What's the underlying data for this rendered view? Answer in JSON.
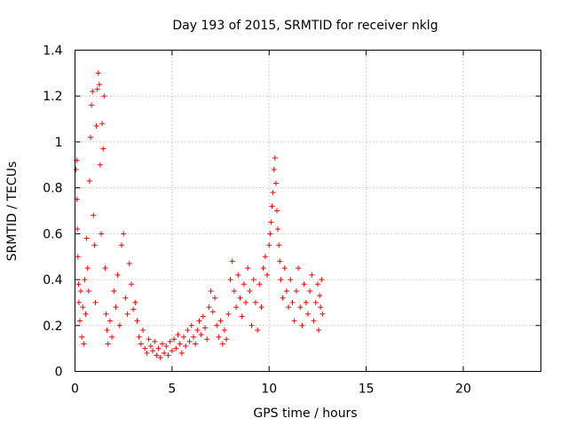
{
  "chart_data": {
    "type": "scatter",
    "title": "Day 193 of 2015, SRMTID for receiver nklg",
    "xlabel": "GPS time / hours",
    "ylabel": "SRMTID / TECUs",
    "xlim": [
      0,
      24
    ],
    "ylim": [
      0,
      1.4
    ],
    "xticks": [
      0,
      5,
      10,
      15,
      20
    ],
    "xtick_labels": [
      "0",
      "5",
      "10",
      "15",
      "20"
    ],
    "yticks": [
      0,
      0.2,
      0.4,
      0.6,
      0.8,
      1,
      1.2,
      1.4
    ],
    "ytick_labels": [
      "0",
      "0.2",
      "0.4",
      "0.6",
      "0.8",
      "1",
      "1.2",
      "1.4"
    ],
    "grid": true,
    "marker": "+",
    "series": [
      {
        "name": "SRMTID",
        "color": "#ff0000",
        "points": [
          [
            0.05,
            0.88
          ],
          [
            0.08,
            0.92
          ],
          [
            0.1,
            0.75
          ],
          [
            0.12,
            0.62
          ],
          [
            0.15,
            0.5
          ],
          [
            0.18,
            0.38
          ],
          [
            0.2,
            0.3
          ],
          [
            0.25,
            0.22
          ],
          [
            0.3,
            0.35
          ],
          [
            0.35,
            0.15
          ],
          [
            0.4,
            0.28
          ],
          [
            0.45,
            0.12
          ],
          [
            0.5,
            0.4
          ],
          [
            0.55,
            0.25
          ],
          [
            0.6,
            0.58
          ],
          [
            0.65,
            0.45
          ],
          [
            0.7,
            0.35
          ],
          [
            0.75,
            0.83
          ],
          [
            0.8,
            1.02
          ],
          [
            0.85,
            1.16
          ],
          [
            0.9,
            1.22
          ],
          [
            0.95,
            0.68
          ],
          [
            1.0,
            0.55
          ],
          [
            1.05,
            0.3
          ],
          [
            1.1,
            1.07
          ],
          [
            1.15,
            1.23
          ],
          [
            1.2,
            1.3
          ],
          [
            1.25,
            1.25
          ],
          [
            1.3,
            0.9
          ],
          [
            1.35,
            0.6
          ],
          [
            1.4,
            1.08
          ],
          [
            1.45,
            0.97
          ],
          [
            1.5,
            1.2
          ],
          [
            1.55,
            0.45
          ],
          [
            1.6,
            0.25
          ],
          [
            1.65,
            0.18
          ],
          [
            1.7,
            0.12
          ],
          [
            1.8,
            0.22
          ],
          [
            1.9,
            0.15
          ],
          [
            2.0,
            0.35
          ],
          [
            2.1,
            0.28
          ],
          [
            2.2,
            0.42
          ],
          [
            2.3,
            0.2
          ],
          [
            2.4,
            0.55
          ],
          [
            2.5,
            0.6
          ],
          [
            2.6,
            0.32
          ],
          [
            2.7,
            0.25
          ],
          [
            2.8,
            0.47
          ],
          [
            2.9,
            0.38
          ],
          [
            3.0,
            0.27
          ],
          [
            3.1,
            0.3
          ],
          [
            3.2,
            0.22
          ],
          [
            3.3,
            0.15
          ],
          [
            3.4,
            0.12
          ],
          [
            3.5,
            0.18
          ],
          [
            3.6,
            0.1
          ],
          [
            3.7,
            0.08
          ],
          [
            3.8,
            0.14
          ],
          [
            3.9,
            0.11
          ],
          [
            4.0,
            0.09
          ],
          [
            4.1,
            0.13
          ],
          [
            4.2,
            0.07
          ],
          [
            4.3,
            0.1
          ],
          [
            4.4,
            0.06
          ],
          [
            4.5,
            0.12
          ],
          [
            4.6,
            0.08
          ],
          [
            4.7,
            0.11
          ],
          [
            4.8,
            0.07
          ],
          [
            4.9,
            0.13
          ],
          [
            5.0,
            0.09
          ],
          [
            5.1,
            0.14
          ],
          [
            5.2,
            0.1
          ],
          [
            5.3,
            0.16
          ],
          [
            5.4,
            0.12
          ],
          [
            5.5,
            0.08
          ],
          [
            5.6,
            0.15
          ],
          [
            5.7,
            0.11
          ],
          [
            5.8,
            0.18
          ],
          [
            5.9,
            0.13
          ],
          [
            6.0,
            0.2
          ],
          [
            6.1,
            0.15
          ],
          [
            6.2,
            0.12
          ],
          [
            6.3,
            0.18
          ],
          [
            6.4,
            0.22
          ],
          [
            6.5,
            0.16
          ],
          [
            6.6,
            0.24
          ],
          [
            6.7,
            0.19
          ],
          [
            6.8,
            0.14
          ],
          [
            6.9,
            0.28
          ],
          [
            7.0,
            0.35
          ],
          [
            7.1,
            0.26
          ],
          [
            7.2,
            0.32
          ],
          [
            7.3,
            0.2
          ],
          [
            7.4,
            0.15
          ],
          [
            7.5,
            0.22
          ],
          [
            7.6,
            0.12
          ],
          [
            7.7,
            0.18
          ],
          [
            7.8,
            0.14
          ],
          [
            7.9,
            0.25
          ],
          [
            8.0,
            0.4
          ],
          [
            8.1,
            0.48
          ],
          [
            8.2,
            0.35
          ],
          [
            8.3,
            0.28
          ],
          [
            8.4,
            0.42
          ],
          [
            8.5,
            0.32
          ],
          [
            8.6,
            0.24
          ],
          [
            8.7,
            0.38
          ],
          [
            8.8,
            0.3
          ],
          [
            8.9,
            0.45
          ],
          [
            9.0,
            0.35
          ],
          [
            9.1,
            0.2
          ],
          [
            9.2,
            0.4
          ],
          [
            9.3,
            0.3
          ],
          [
            9.4,
            0.18
          ],
          [
            9.5,
            0.38
          ],
          [
            9.6,
            0.28
          ],
          [
            9.7,
            0.45
          ],
          [
            9.8,
            0.5
          ],
          [
            9.9,
            0.42
          ],
          [
            10.0,
            0.55
          ],
          [
            10.05,
            0.6
          ],
          [
            10.1,
            0.65
          ],
          [
            10.15,
            0.72
          ],
          [
            10.2,
            0.78
          ],
          [
            10.25,
            0.88
          ],
          [
            10.3,
            0.93
          ],
          [
            10.35,
            0.82
          ],
          [
            10.4,
            0.7
          ],
          [
            10.45,
            0.62
          ],
          [
            10.5,
            0.55
          ],
          [
            10.55,
            0.48
          ],
          [
            10.6,
            0.4
          ],
          [
            10.7,
            0.32
          ],
          [
            10.8,
            0.45
          ],
          [
            10.9,
            0.35
          ],
          [
            11.0,
            0.28
          ],
          [
            11.1,
            0.4
          ],
          [
            11.2,
            0.3
          ],
          [
            11.3,
            0.22
          ],
          [
            11.4,
            0.35
          ],
          [
            11.5,
            0.45
          ],
          [
            11.6,
            0.28
          ],
          [
            11.7,
            0.2
          ],
          [
            11.8,
            0.38
          ],
          [
            11.9,
            0.3
          ],
          [
            12.0,
            0.25
          ],
          [
            12.1,
            0.35
          ],
          [
            12.2,
            0.42
          ],
          [
            12.3,
            0.22
          ],
          [
            12.4,
            0.3
          ],
          [
            12.5,
            0.38
          ],
          [
            12.55,
            0.18
          ],
          [
            12.6,
            0.33
          ],
          [
            12.65,
            0.28
          ],
          [
            12.7,
            0.4
          ],
          [
            12.75,
            0.25
          ]
        ]
      }
    ]
  }
}
